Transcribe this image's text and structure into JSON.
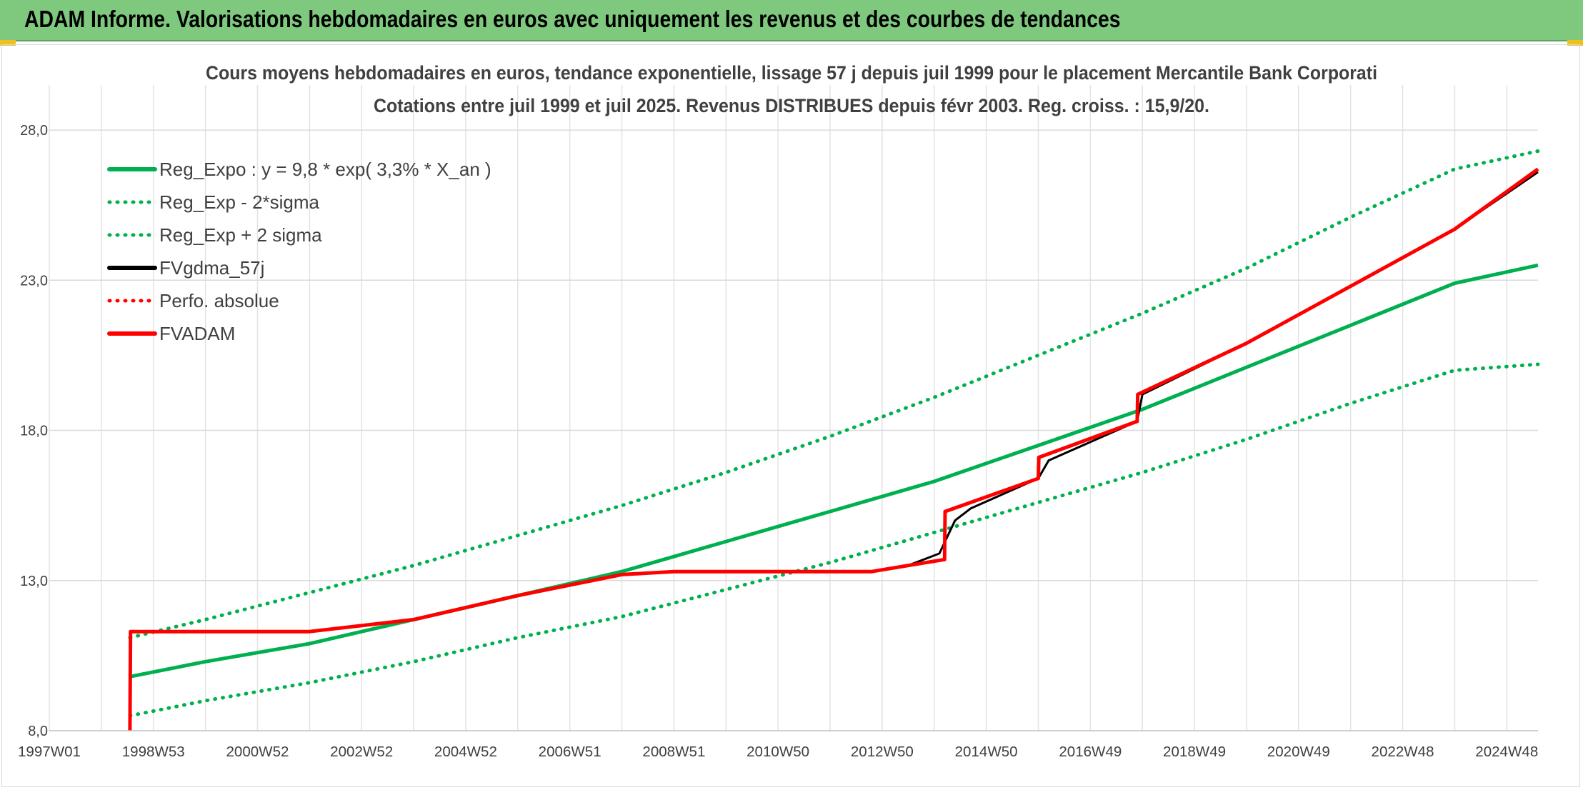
{
  "banner": {
    "title": "ADAM Informe. Valorisations hebdomadaires en euros avec uniquement les revenus et des courbes de tendances"
  },
  "chart_data": {
    "type": "line",
    "title_line1": "Cours moyens hebdomadaires en euros, tendance exponentielle, lissage 57 j depuis juil 1999 pour le placement Mercantile Bank Corporati",
    "title_line2": "Cotations entre juil 1999 et juil 2025. Revenus DISTRIBUES depuis févr 2003. Reg. croiss. : 15,9/20.",
    "xlabel": "",
    "ylabel": "",
    "ylim": [
      8,
      29.5
    ],
    "xlim": [
      1997.0,
      2025.6
    ],
    "yticks": [
      8,
      13,
      18,
      23,
      28
    ],
    "ytick_labels": [
      "8,0",
      "13,0",
      "18,0",
      "23,0",
      "28,0"
    ],
    "xticks": [
      1997.0,
      1999.0,
      2001.0,
      2003.0,
      2005.0,
      2007.0,
      2009.0,
      2011.0,
      2013.0,
      2015.0,
      2017.0,
      2019.0,
      2021.0,
      2023.0,
      2025.0
    ],
    "xtick_labels": [
      "1997W01",
      "1998W53",
      "2000W52",
      "2002W52",
      "2004W52",
      "2006W51",
      "2008W51",
      "2010W50",
      "2012W50",
      "2014W50",
      "2016W49",
      "2018W49",
      "2020W49",
      "2022W48",
      "2024W48"
    ],
    "grid": true,
    "legend_position": "top-left",
    "series": [
      {
        "name": "Reg_Expo : y = 9,8 * exp( 3,3% *  X_an )",
        "color": "#00b050",
        "style": "solid",
        "x": [
          1998.55,
          2000.0,
          2002.0,
          2004.0,
          2006.0,
          2008.0,
          2010.0,
          2012.0,
          2014.0,
          2016.0,
          2018.0,
          2020.0,
          2022.0,
          2024.0,
          2025.6
        ],
        "y": [
          9.8,
          10.3,
          10.9,
          11.7,
          12.5,
          13.3,
          14.3,
          15.3,
          16.3,
          17.5,
          18.7,
          20.1,
          21.5,
          22.9,
          23.5
        ]
      },
      {
        "name": "Reg_Exp - 2*sigma",
        "color": "#00b050",
        "style": "dotted",
        "x": [
          1998.55,
          2000.0,
          2002.0,
          2004.0,
          2006.0,
          2008.0,
          2010.0,
          2012.0,
          2014.0,
          2016.0,
          2018.0,
          2020.0,
          2022.0,
          2024.0,
          2025.6
        ],
        "y": [
          8.5,
          9.0,
          9.6,
          10.3,
          11.1,
          11.8,
          12.7,
          13.6,
          14.6,
          15.6,
          16.6,
          17.7,
          18.9,
          20.0,
          20.2
        ]
      },
      {
        "name": "Reg_Exp + 2 sigma",
        "color": "#00b050",
        "style": "dotted",
        "x": [
          1998.55,
          2000.0,
          2002.0,
          2004.0,
          2006.0,
          2008.0,
          2010.0,
          2012.0,
          2014.0,
          2016.0,
          2018.0,
          2020.0,
          2022.0,
          2024.0,
          2025.6
        ],
        "y": [
          11.1,
          11.7,
          12.6,
          13.5,
          14.5,
          15.5,
          16.6,
          17.8,
          19.1,
          20.5,
          21.9,
          23.4,
          25.1,
          26.7,
          27.3
        ]
      },
      {
        "name": "FVgdma_57j",
        "color": "#000000",
        "style": "solid",
        "x": [
          1998.55,
          1998.56,
          2002.0,
          2004.0,
          2006.0,
          2008.0,
          2009.0,
          2011.0,
          2012.8,
          2013.5,
          2014.1,
          2014.4,
          2014.7,
          2016.0,
          2016.2,
          2017.9,
          2018.0,
          2020.0,
          2022.0,
          2024.0,
          2025.6
        ],
        "y": [
          8.0,
          11.3,
          11.3,
          11.7,
          12.5,
          13.2,
          13.3,
          13.3,
          13.3,
          13.5,
          13.9,
          15.0,
          15.4,
          16.4,
          17.0,
          18.3,
          19.2,
          20.9,
          22.8,
          24.7,
          26.6
        ]
      },
      {
        "name": "Perfo. absolue",
        "color": "#ff0000",
        "style": "dotted",
        "x": [],
        "y": []
      },
      {
        "name": "FVADAM",
        "color": "#ff0000",
        "style": "solid",
        "x": [
          1998.55,
          1998.56,
          2002.0,
          2004.0,
          2006.0,
          2008.0,
          2009.0,
          2011.0,
          2012.8,
          2013.5,
          2014.2,
          2014.21,
          2016.0,
          2016.01,
          2017.9,
          2017.91,
          2020.0,
          2022.0,
          2024.0,
          2025.6
        ],
        "y": [
          8.0,
          11.3,
          11.3,
          11.7,
          12.5,
          13.2,
          13.3,
          13.3,
          13.3,
          13.5,
          13.7,
          15.3,
          16.4,
          17.1,
          18.3,
          19.2,
          20.9,
          22.8,
          24.7,
          26.7
        ]
      }
    ]
  }
}
